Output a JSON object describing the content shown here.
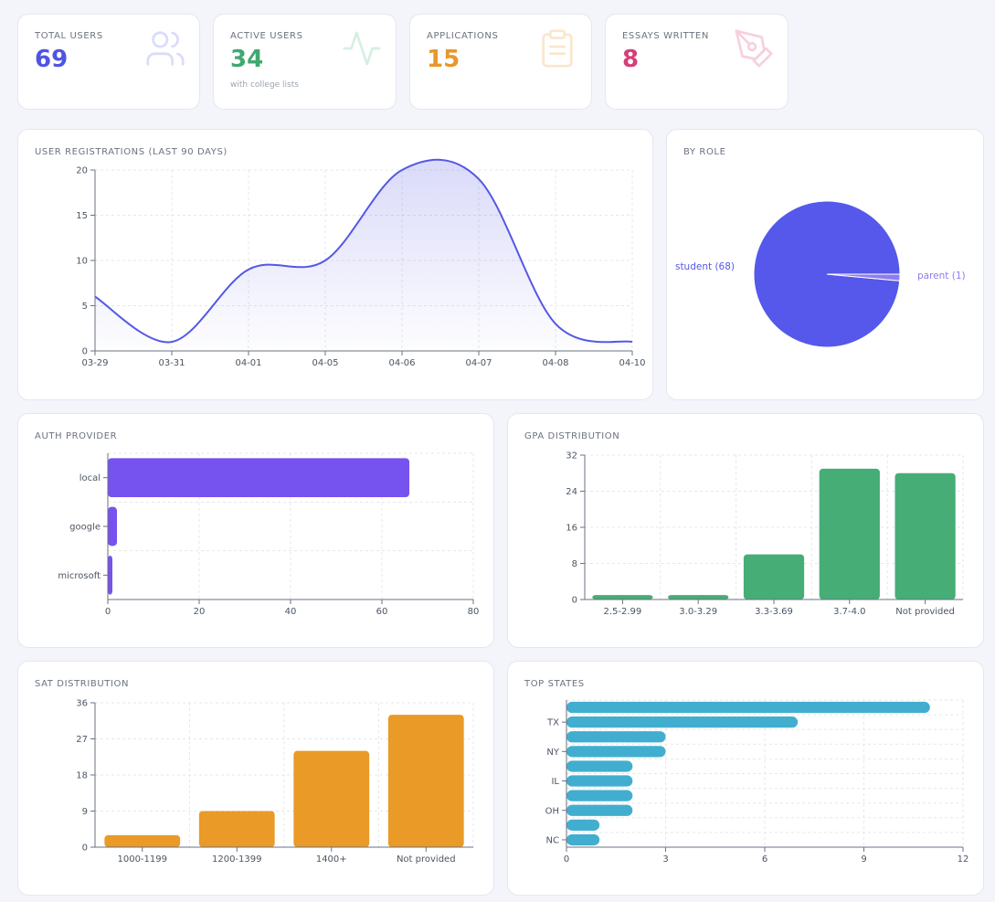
{
  "stats": [
    {
      "label": "TOTAL USERS",
      "value": "69",
      "sub": "",
      "color": "#4f55e3",
      "icon": "users-icon"
    },
    {
      "label": "ACTIVE USERS",
      "value": "34",
      "sub": "with college lists",
      "color": "#42a872",
      "icon": "activity-icon"
    },
    {
      "label": "APPLICATIONS",
      "value": "15",
      "sub": "",
      "color": "#e9972a",
      "icon": "clipboard-icon"
    },
    {
      "label": "ESSAYS WRITTEN",
      "value": "8",
      "sub": "",
      "color": "#d63e7a",
      "icon": "pen-icon"
    }
  ],
  "chart_data": [
    {
      "id": "registrations",
      "type": "area",
      "title": "USER REGISTRATIONS (LAST 90 DAYS)",
      "categories": [
        "03-29",
        "03-31",
        "04-01",
        "04-05",
        "04-06",
        "04-07",
        "04-08",
        "04-10"
      ],
      "values": [
        6,
        1,
        9,
        10,
        20,
        19,
        3,
        1
      ],
      "ylim": [
        0,
        20
      ],
      "yticks": [
        0,
        5,
        10,
        15,
        20
      ],
      "color": "#5558e3"
    },
    {
      "id": "role",
      "type": "pie",
      "title": "BY ROLE",
      "labels": [
        "student (68)",
        "parent (1)"
      ],
      "values": [
        68,
        1
      ],
      "colors": [
        "#5558ea",
        "#8f7cf0"
      ]
    },
    {
      "id": "auth",
      "type": "bar",
      "orientation": "horizontal",
      "title": "AUTH PROVIDER",
      "categories": [
        "local",
        "google",
        "microsoft"
      ],
      "values": [
        66,
        2,
        1
      ],
      "xlim": [
        0,
        80
      ],
      "xticks": [
        0,
        20,
        40,
        60,
        80
      ],
      "color": "#7652ef"
    },
    {
      "id": "gpa",
      "type": "bar",
      "title": "GPA DISTRIBUTION",
      "categories": [
        "2.5-2.99",
        "3.0-3.29",
        "3.3-3.69",
        "3.7-4.0",
        "Not provided"
      ],
      "values": [
        1,
        1,
        10,
        29,
        28
      ],
      "ylim": [
        0,
        32
      ],
      "yticks": [
        0,
        8,
        16,
        24,
        32
      ],
      "color": "#46ad76"
    },
    {
      "id": "sat",
      "type": "bar",
      "title": "SAT DISTRIBUTION",
      "categories": [
        "1000-1199",
        "1200-1399",
        "1400+",
        "Not provided"
      ],
      "values": [
        3,
        9,
        24,
        33
      ],
      "ylim": [
        0,
        36
      ],
      "yticks": [
        0,
        9,
        18,
        27,
        36
      ],
      "color": "#ea9a27"
    },
    {
      "id": "states",
      "type": "bar",
      "orientation": "horizontal",
      "title": "TOP STATES",
      "categories": [
        "",
        "TX",
        "",
        "NY",
        "",
        "IL",
        "",
        "OH",
        "",
        "NC"
      ],
      "values": [
        11,
        7,
        3,
        3,
        2,
        2,
        2,
        2,
        1,
        1
      ],
      "xlim": [
        0,
        12
      ],
      "xticks": [
        0,
        3,
        6,
        9,
        12
      ],
      "color": "#42aecf"
    }
  ]
}
